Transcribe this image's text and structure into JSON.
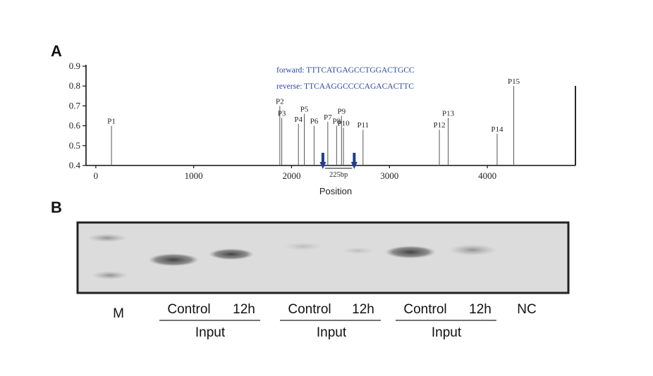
{
  "panels": {
    "a": "A",
    "b": "B"
  },
  "chart_data": {
    "type": "bar",
    "xlabel": "Position",
    "ylabel": "",
    "xlim": [
      -100,
      4900
    ],
    "ylim": [
      0.4,
      0.9
    ],
    "xticks": [
      0,
      1000,
      2000,
      3000,
      4000
    ],
    "yticks": [
      0.4,
      0.5,
      0.6,
      0.7,
      0.8,
      0.9
    ],
    "points": [
      {
        "name": "P1",
        "x": 160,
        "y": 0.6
      },
      {
        "name": "P2",
        "x": 1880,
        "y": 0.7
      },
      {
        "name": "P3",
        "x": 1900,
        "y": 0.64
      },
      {
        "name": "P4",
        "x": 2070,
        "y": 0.61
      },
      {
        "name": "P5",
        "x": 2130,
        "y": 0.66
      },
      {
        "name": "P6",
        "x": 2230,
        "y": 0.6
      },
      {
        "name": "P7",
        "x": 2370,
        "y": 0.62
      },
      {
        "name": "P8",
        "x": 2460,
        "y": 0.6
      },
      {
        "name": "P9",
        "x": 2510,
        "y": 0.65
      },
      {
        "name": "P10",
        "x": 2530,
        "y": 0.59
      },
      {
        "name": "P11",
        "x": 2730,
        "y": 0.58
      },
      {
        "name": "P12",
        "x": 3510,
        "y": 0.58
      },
      {
        "name": "P13",
        "x": 3600,
        "y": 0.64
      },
      {
        "name": "P14",
        "x": 4100,
        "y": 0.56
      },
      {
        "name": "P15",
        "x": 4270,
        "y": 0.8
      }
    ],
    "primers": {
      "forward": "forward: TTTCATGAGCCTGGACTGCC",
      "reverse": "reverse: TTCAAGGCCCCAGACACTTC"
    },
    "amplicon": {
      "label": "225bp",
      "start": 2320,
      "end": 2640
    },
    "arrow_color": "#1f3f8f"
  },
  "gel": {
    "lanes": {
      "marker": "M",
      "g1": {
        "control": "Control",
        "h12": "12h",
        "group": "Input"
      },
      "g2": {
        "control": "Control",
        "h12": "12h",
        "group": "Input"
      },
      "g3": {
        "control": "Control",
        "h12": "12h",
        "group": "Input"
      },
      "nc": "NC"
    }
  }
}
